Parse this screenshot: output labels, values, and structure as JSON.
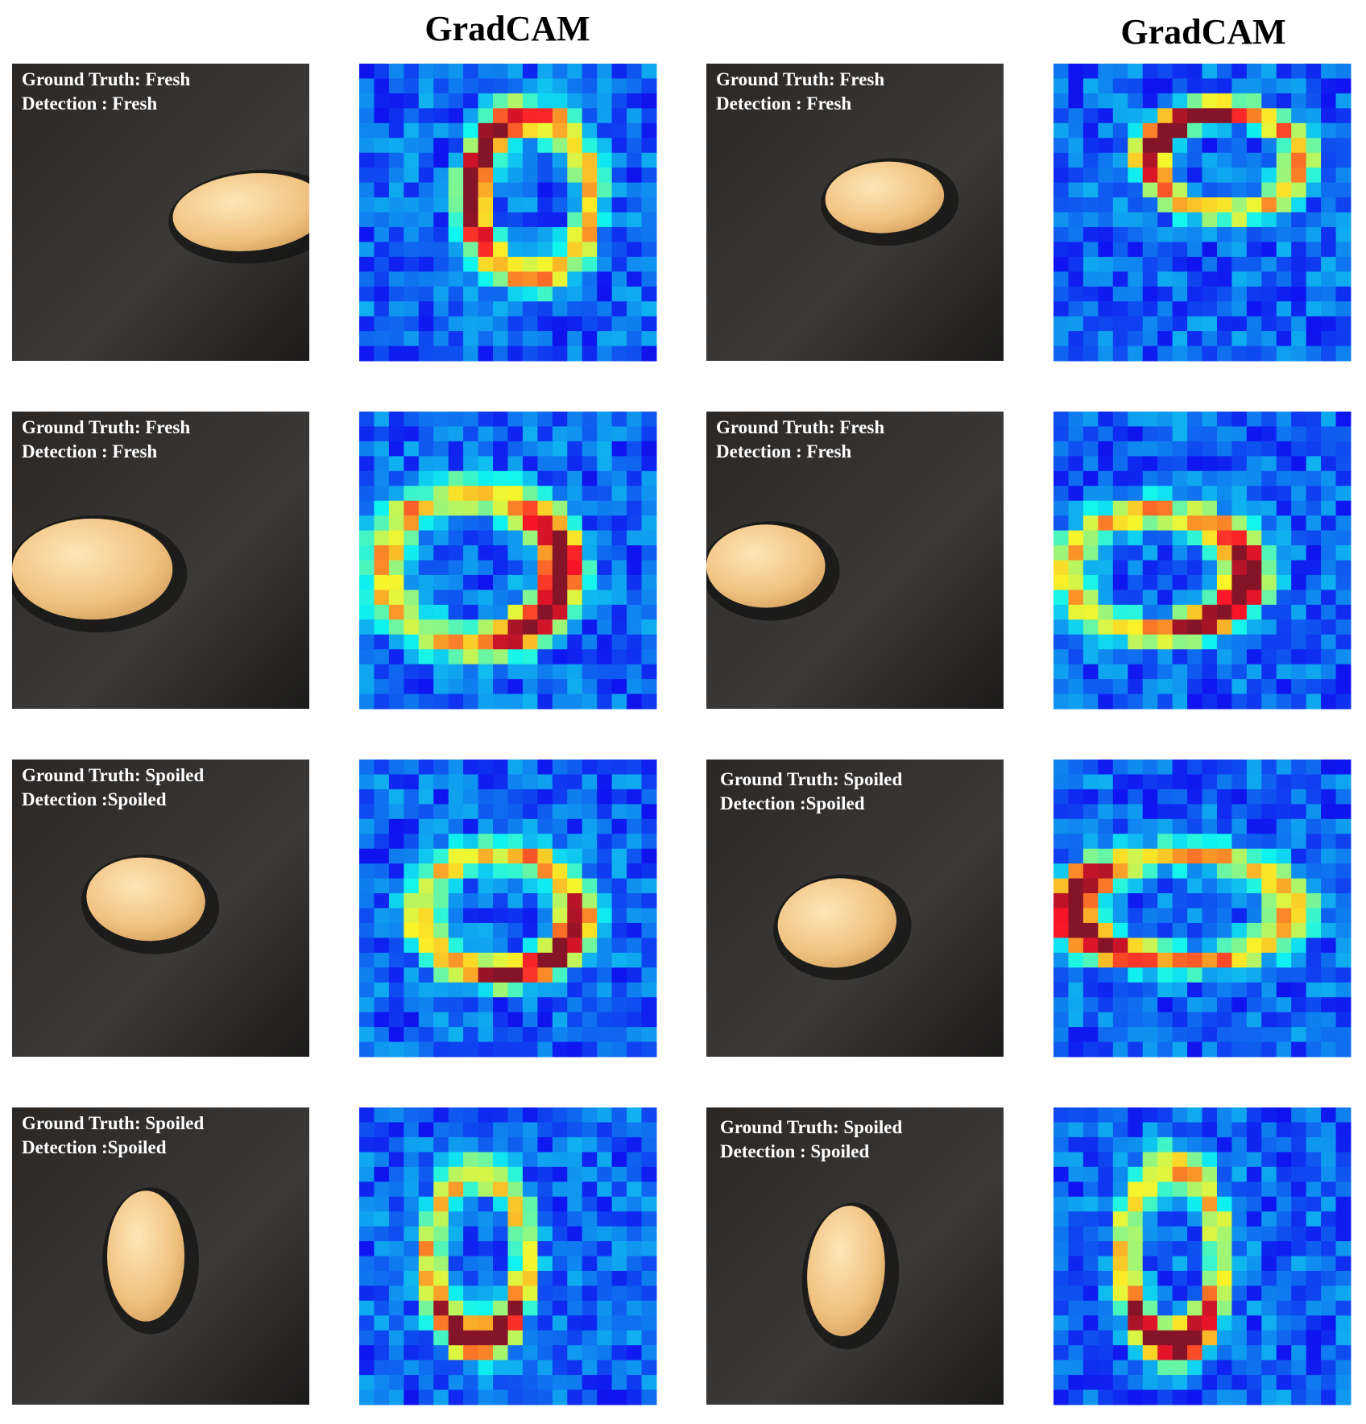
{
  "headers": [
    "GradCAM",
    "GradCAM"
  ],
  "panels": [
    {
      "ground_truth": "Ground Truth: Fresh",
      "detection": "Detection : Fresh"
    },
    {
      "ground_truth": "Ground Truth: Fresh",
      "detection": "Detection : Fresh"
    },
    {
      "ground_truth": "Ground Truth: Fresh",
      "detection": "Detection : Fresh"
    },
    {
      "ground_truth": "Ground Truth: Fresh",
      "detection": "Detection : Fresh"
    },
    {
      "ground_truth": "Ground Truth: Spoiled",
      "detection": "Detection :Spoiled"
    },
    {
      "ground_truth": "Ground Truth: Spoiled",
      "detection": "Detection :Spoiled"
    },
    {
      "ground_truth": "Ground Truth: Spoiled",
      "detection": "Detection :Spoiled"
    },
    {
      "ground_truth": "Ground Truth: Spoiled",
      "detection": "Detection : Spoiled"
    }
  ]
}
